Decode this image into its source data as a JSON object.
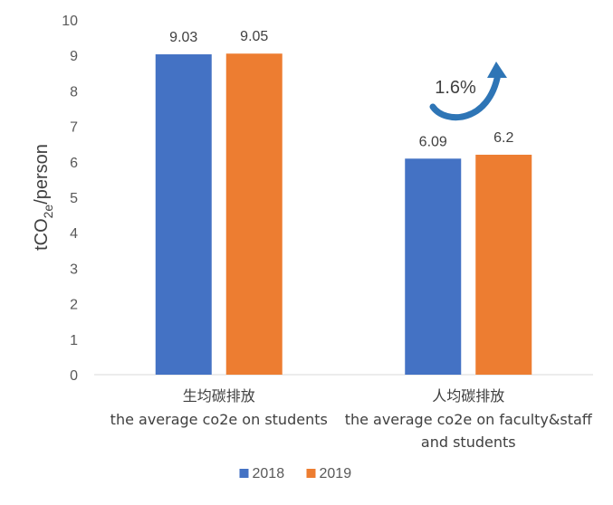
{
  "chart_data": {
    "type": "bar",
    "categories": [
      {
        "label_cn": "生均碳排放",
        "label_en_lines": [
          "the average co2e on students"
        ]
      },
      {
        "label_cn": "人均碳排放",
        "label_en_lines": [
          "the average co2e on faculty&staff",
          "and students"
        ]
      }
    ],
    "series": [
      {
        "name": "2018",
        "values": [
          9.03,
          6.09
        ],
        "labels": [
          "9.03",
          "6.09"
        ],
        "color": "#4472C4"
      },
      {
        "name": "2019",
        "values": [
          9.05,
          6.2
        ],
        "labels": [
          "9.05",
          "6.2"
        ],
        "color": "#ED7D31"
      }
    ],
    "ylabel": {
      "main": "tCO",
      "sub": "2e",
      "tail": "/person"
    },
    "ylim": [
      0,
      10
    ],
    "yticks": [
      "0",
      "1",
      "2",
      "3",
      "4",
      "5",
      "6",
      "7",
      "8",
      "9",
      "10"
    ],
    "grid": false,
    "legend_position": "bottom",
    "annotation": {
      "text": "1.6%",
      "arrow_color": "#2E75B6"
    }
  }
}
